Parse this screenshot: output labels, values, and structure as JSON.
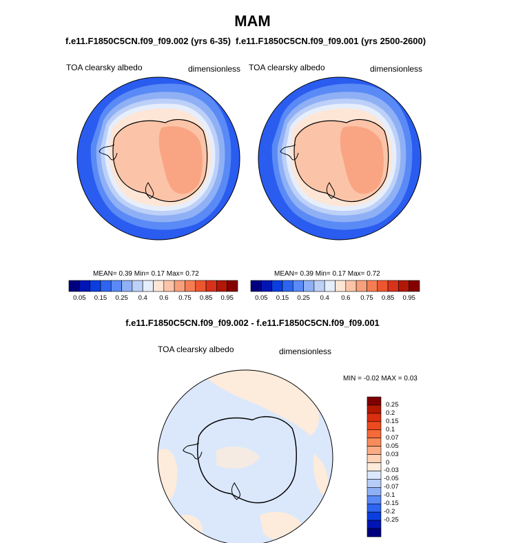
{
  "title": "MAM",
  "panels": [
    {
      "case_title": "f.e11.F1850C5CN.f09_f09.002 (yrs 6-35)",
      "var_left": "TOA clearsky albedo",
      "var_right": "dimensionless",
      "stats": {
        "mean": "0.39",
        "min": "0.17",
        "max": "0.72"
      }
    },
    {
      "case_title": "f.e11.F1850C5CN.f09_f09.001 (yrs 2500-2600)",
      "var_left": "TOA clearsky albedo",
      "var_right": "dimensionless",
      "stats": {
        "mean": "0.39",
        "min": "0.17",
        "max": "0.72"
      }
    }
  ],
  "stats_labels": {
    "mean": "MEAN=",
    "min": "Min=",
    "max": "Max=",
    "diff_min": "MIN =",
    "diff_max": "MAX ="
  },
  "colorbar_top": {
    "ticks": [
      "0.05",
      "0.15",
      "0.25",
      "0.4",
      "0.6",
      "0.75",
      "0.85",
      "0.95"
    ],
    "colors": [
      "#00007f",
      "#0015b4",
      "#0a3ee0",
      "#2d64f0",
      "#5a8af5",
      "#8fb0f5",
      "#bcd0f8",
      "#e6eefc",
      "#fde6d6",
      "#fbc4a8",
      "#f8a07c",
      "#f57d54",
      "#ee5630",
      "#d8321a",
      "#b21708",
      "#840000"
    ]
  },
  "diff": {
    "title": "f.e11.F1850C5CN.f09_f09.002 - f.e11.F1850C5CN.f09_f09.001",
    "var_left": "TOA clearsky albedo",
    "var_right": "dimensionless",
    "min": "-0.02",
    "max": "0.03",
    "colorbar": {
      "ticks": [
        "0.25",
        "0.2",
        "0.15",
        "0.1",
        "0.07",
        "0.05",
        "0.03",
        "0",
        "-0.03",
        "-0.05",
        "-0.07",
        "-0.1",
        "-0.15",
        "-0.2",
        "-0.25"
      ],
      "colors": [
        "#7f0000",
        "#b41800",
        "#d92e10",
        "#ee4a20",
        "#f56a38",
        "#f98c5a",
        "#fbac84",
        "#fdd2b6",
        "#fdebdb",
        "#dbe8fc",
        "#b6cdf8",
        "#8fb0f5",
        "#5a8af5",
        "#2d64f0",
        "#0a3ee0",
        "#0015b4",
        "#00007f"
      ]
    }
  },
  "chart_data": {
    "type": "heatmap",
    "map_projection": "south-polar-stereographic",
    "season": "MAM",
    "variable": "TOA clearsky albedo",
    "units": "dimensionless",
    "panels": [
      {
        "case": "f.e11.F1850C5CN.f09_f09.002 (yrs 6-35)",
        "mean": 0.39,
        "min": 0.17,
        "max": 0.72,
        "contour_levels": [
          0.05,
          0.15,
          0.25,
          0.4,
          0.6,
          0.75,
          0.85,
          0.95
        ]
      },
      {
        "case": "f.e11.F1850C5CN.f09_f09.001 (yrs 2500-2600)",
        "mean": 0.39,
        "min": 0.17,
        "max": 0.72,
        "contour_levels": [
          0.05,
          0.15,
          0.25,
          0.4,
          0.6,
          0.75,
          0.85,
          0.95
        ]
      },
      {
        "case": "f.e11.F1850C5CN.f09_f09.002 - f.e11.F1850C5CN.f09_f09.001",
        "min": -0.02,
        "max": 0.03,
        "contour_levels": [
          -0.25,
          -0.2,
          -0.15,
          -0.1,
          -0.07,
          -0.05,
          -0.03,
          0,
          0.03,
          0.05,
          0.07,
          0.1,
          0.15,
          0.2,
          0.25
        ]
      }
    ]
  }
}
